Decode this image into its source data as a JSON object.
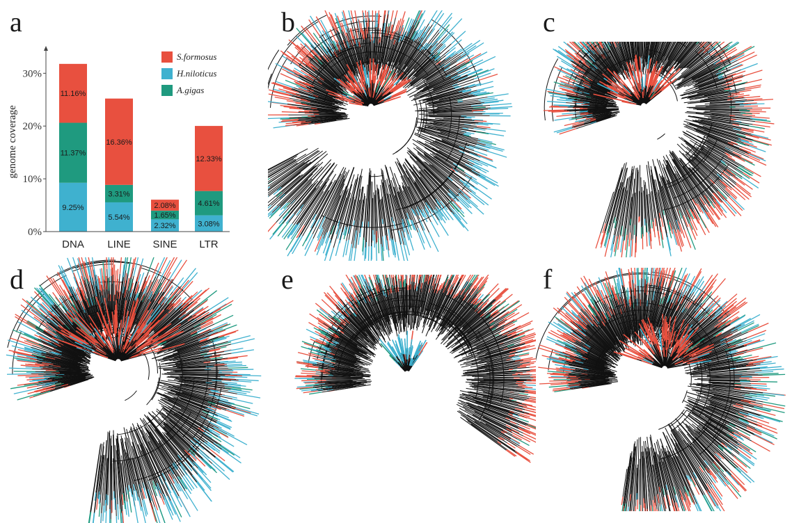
{
  "panels": [
    {
      "letter": "a"
    },
    {
      "letter": "b"
    },
    {
      "letter": "c"
    },
    {
      "letter": "d"
    },
    {
      "letter": "e"
    },
    {
      "letter": "f"
    }
  ],
  "colors": {
    "S_formosus": "#e8503f",
    "H_niloticus": "#3fb1cf",
    "A_gigas": "#1f9a7f",
    "branch": "#111111"
  },
  "chart_data": {
    "type": "bar",
    "stacked": true,
    "categories": [
      "DNA",
      "LINE",
      "SINE",
      "LTR"
    ],
    "series": [
      {
        "name": "H.niloticus",
        "color": "#3fb1cf",
        "values": [
          9.25,
          5.54,
          2.32,
          3.08
        ],
        "labels": [
          "9.25%",
          "5.54%",
          "2.32%",
          "3.08%"
        ]
      },
      {
        "name": "A.gigas",
        "color": "#1f9a7f",
        "values": [
          11.37,
          3.31,
          1.65,
          4.61
        ],
        "labels": [
          "11.37%",
          "3.31%",
          "1.65%",
          "4.61%"
        ]
      },
      {
        "name": "S.formosus",
        "color": "#e8503f",
        "values": [
          11.16,
          16.36,
          2.08,
          12.33
        ],
        "labels": [
          "11.16%",
          "16.36%",
          "2.08%",
          "12.33%"
        ]
      }
    ],
    "legend_order": [
      "S.formosus",
      "H.niloticus",
      "A.gigas"
    ],
    "ylabel": "genome coverage",
    "yticks": [
      "0%",
      "10%",
      "20%",
      "30%"
    ],
    "ylim": [
      0,
      34
    ],
    "legend_position": "top-right",
    "grid": false
  }
}
